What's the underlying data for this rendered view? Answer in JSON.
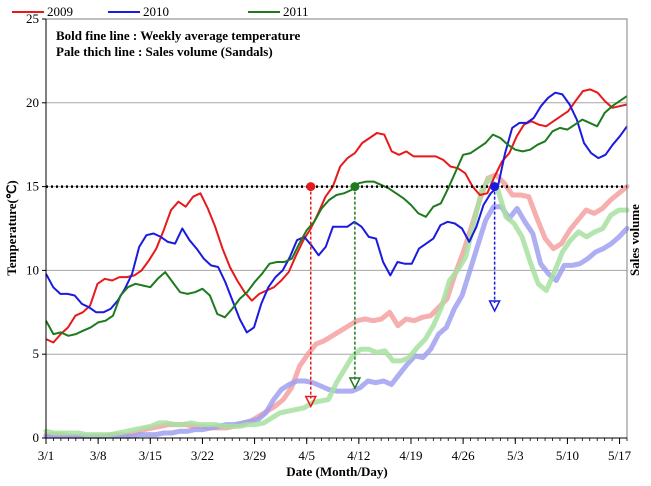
{
  "chart_data": {
    "type": "line",
    "xlabel": "Date  (Month/Day)",
    "ylabel_left": "Temperature(℃)",
    "ylabel_right": "Sales volume",
    "notes": [
      "Bold fine line : Weekly average temperature",
      "Pale thich line : Sales volume (Sandals)"
    ],
    "ylim": [
      0,
      25
    ],
    "yticks": [
      "0",
      "5",
      "10",
      "15",
      "20",
      "25"
    ],
    "x_start": "3/1",
    "x_end": "5/18",
    "xticks": [
      "3/1",
      "3/8",
      "3/15",
      "3/22",
      "3/29",
      "4/5",
      "4/12",
      "4/19",
      "4/26",
      "5/3",
      "5/10",
      "5/17"
    ],
    "threshold": 15,
    "legend": {
      "position": "top-left"
    },
    "grid": {
      "horizontal": true,
      "vertical": false
    },
    "colors": {
      "2009": "#e8191a",
      "2010": "#1a1ae0",
      "2011": "#1e7a1e"
    },
    "temperature_series": [
      {
        "name": "2009",
        "color": "#e8191a",
        "values": [
          5.9,
          5.7,
          6.2,
          6.6,
          7.3,
          7.5,
          7.9,
          9.2,
          9.5,
          9.4,
          9.6,
          9.6,
          9.7,
          10.0,
          10.6,
          11.3,
          12.4,
          13.6,
          14.1,
          13.8,
          14.4,
          14.6,
          13.7,
          12.6,
          11.3,
          10.2,
          9.4,
          8.7,
          8.2,
          8.6,
          8.8,
          9.0,
          9.4,
          9.9,
          10.9,
          11.8,
          12.5,
          13.4,
          14.4,
          15.0,
          16.2,
          16.7,
          17.0,
          17.6,
          17.9,
          18.2,
          18.1,
          17.1,
          16.9,
          17.1,
          16.8,
          16.8,
          16.8,
          16.8,
          16.6,
          16.2,
          16.1,
          15.8,
          15.0,
          14.5,
          14.6,
          15.6,
          16.5,
          17.0,
          18.0,
          18.7,
          18.9,
          18.7,
          18.6,
          18.9,
          19.2,
          19.5,
          20.1,
          20.7,
          20.8,
          20.6,
          20.1,
          19.7,
          19.8,
          19.9
        ]
      },
      {
        "name": "2010",
        "color": "#1a1ae0",
        "values": [
          9.8,
          9.0,
          8.6,
          8.6,
          8.5,
          8.0,
          7.8,
          7.5,
          7.5,
          7.7,
          8.2,
          8.9,
          9.8,
          11.4,
          12.1,
          12.2,
          12.0,
          11.7,
          11.6,
          12.5,
          11.8,
          11.3,
          10.7,
          10.3,
          10.2,
          9.3,
          8.2,
          7.1,
          6.3,
          6.6,
          8.0,
          9.0,
          9.6,
          10.0,
          10.8,
          11.8,
          12.0,
          11.5,
          10.9,
          11.4,
          12.6,
          12.6,
          12.6,
          12.9,
          12.6,
          12.0,
          11.9,
          10.5,
          9.7,
          10.5,
          10.4,
          10.4,
          11.3,
          11.6,
          11.9,
          12.7,
          12.9,
          12.8,
          12.5,
          11.7,
          12.6,
          13.9,
          14.6,
          15.0,
          17.0,
          18.5,
          18.8,
          18.8,
          19.1,
          19.8,
          20.3,
          20.6,
          20.5,
          19.9,
          19.0,
          17.6,
          17.0,
          16.7,
          16.9,
          17.5,
          18.0,
          18.6
        ]
      },
      {
        "name": "2011",
        "color": "#1e7a1e",
        "values": [
          7.0,
          6.2,
          6.3,
          6.1,
          6.2,
          6.4,
          6.6,
          6.9,
          7.0,
          7.3,
          8.5,
          9.0,
          9.2,
          9.1,
          9.0,
          9.5,
          9.9,
          9.3,
          8.7,
          8.6,
          8.7,
          8.9,
          8.5,
          7.4,
          7.2,
          7.7,
          8.3,
          8.7,
          9.3,
          9.8,
          10.4,
          10.5,
          10.5,
          10.7,
          11.6,
          12.4,
          12.9,
          13.7,
          14.2,
          14.5,
          14.6,
          14.8,
          15.2,
          15.3,
          15.3,
          15.1,
          14.9,
          14.6,
          14.3,
          13.9,
          13.4,
          13.2,
          13.8,
          14.0,
          14.9,
          15.9,
          16.9,
          17.0,
          17.3,
          17.6,
          18.1,
          17.9,
          17.5,
          17.2,
          17.1,
          17.2,
          17.5,
          17.7,
          18.3,
          18.5,
          18.4,
          18.7,
          19.0,
          18.8,
          18.6,
          19.4,
          19.8,
          20.1,
          20.4
        ]
      }
    ],
    "sales_series": [
      {
        "name": "2009",
        "color": "#f4a0a0",
        "values": [
          0.2,
          0.2,
          0.2,
          0.1,
          0.1,
          0.1,
          0.1,
          0.1,
          0.2,
          0.2,
          0.2,
          0.3,
          0.5,
          0.6,
          0.7,
          0.8,
          0.8,
          0.8,
          0.7,
          0.7,
          0.6,
          0.6,
          0.6,
          0.7,
          0.8,
          1.0,
          1.3,
          1.6,
          1.9,
          2.3,
          3.0,
          4.3,
          5.0,
          5.6,
          5.8,
          6.1,
          6.4,
          6.7,
          7.0,
          7.1,
          7.0,
          7.1,
          7.5,
          6.7,
          7.1,
          7.0,
          7.2,
          7.3,
          7.8,
          8.3,
          9.8,
          11.1,
          12.6,
          14.2,
          15.5,
          15.7,
          15.2,
          14.5,
          14.5,
          14.4,
          13.1,
          11.9,
          11.3,
          11.6,
          12.4,
          13.0,
          13.6,
          13.4,
          13.7,
          14.2,
          14.6,
          15.0
        ]
      },
      {
        "name": "2010",
        "color": "#a0a0f0",
        "values": [
          0.1,
          0.1,
          0.1,
          0.1,
          0.1,
          0.1,
          0.1,
          0.1,
          0.1,
          0.1,
          0.1,
          0.1,
          0.2,
          0.2,
          0.2,
          0.3,
          0.3,
          0.4,
          0.4,
          0.5,
          0.5,
          0.6,
          0.7,
          0.8,
          0.8,
          0.9,
          1.0,
          1.1,
          1.5,
          2.3,
          2.9,
          3.2,
          3.4,
          3.4,
          3.3,
          3.1,
          2.9,
          2.8,
          2.8,
          2.8,
          3.0,
          3.4,
          3.3,
          3.4,
          3.2,
          3.8,
          4.4,
          4.9,
          4.8,
          5.3,
          6.2,
          6.6,
          7.7,
          8.5,
          10.0,
          11.5,
          13.0,
          13.8,
          13.8,
          13.1,
          13.7,
          12.9,
          12.2,
          10.4,
          9.8,
          9.4,
          10.3,
          10.3,
          10.4,
          10.7,
          11.1,
          11.3,
          11.6,
          12.0,
          12.5
        ]
      },
      {
        "name": "2011",
        "color": "#a8e0a0",
        "values": [
          0.4,
          0.3,
          0.3,
          0.3,
          0.3,
          0.2,
          0.2,
          0.2,
          0.2,
          0.3,
          0.4,
          0.5,
          0.6,
          0.7,
          0.9,
          0.9,
          0.8,
          0.8,
          0.9,
          0.8,
          0.8,
          0.8,
          0.7,
          0.7,
          0.7,
          0.8,
          0.8,
          0.9,
          1.2,
          1.5,
          1.6,
          1.7,
          1.8,
          2.1,
          2.2,
          2.3,
          3.3,
          4.1,
          4.9,
          5.3,
          5.3,
          5.1,
          5.2,
          4.6,
          4.6,
          4.8,
          5.4,
          5.9,
          6.7,
          7.8,
          9.4,
          10.0,
          10.8,
          12.8,
          14.8,
          15.5,
          14.8,
          13.2,
          12.8,
          12.0,
          10.5,
          9.2,
          8.8,
          9.9,
          11.1,
          11.8,
          12.3,
          12.0,
          12.3,
          12.5,
          13.3,
          13.6,
          13.6
        ]
      }
    ],
    "markers": [
      {
        "name": "2009",
        "date_index": 36,
        "color": "#e8191a",
        "sales_value": 2.0
      },
      {
        "name": "2010",
        "date_index": 61,
        "color": "#1a1ae0",
        "sales_value": 7.7
      },
      {
        "name": "2011",
        "date_index": 42,
        "color": "#1e7a1e",
        "sales_value": 3.1
      }
    ]
  }
}
